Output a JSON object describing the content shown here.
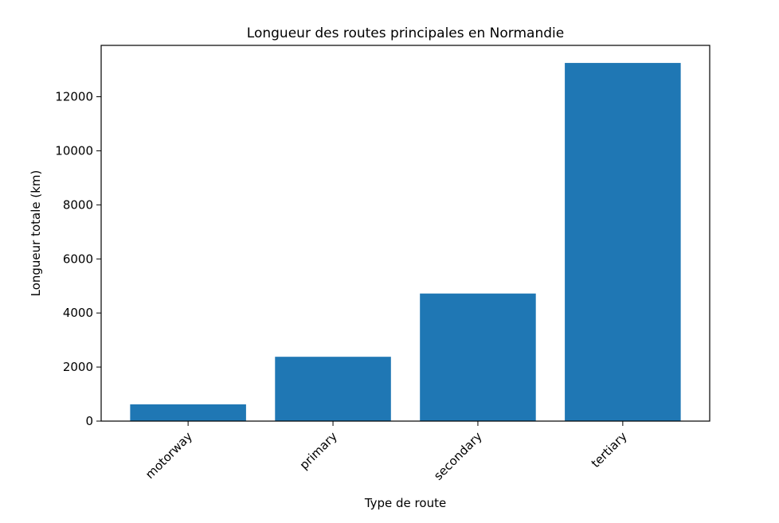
{
  "chart_data": {
    "type": "bar",
    "title": "Longueur des routes principales en Normandie",
    "xlabel": "Type de route",
    "ylabel": "Longueur totale (km)",
    "categories": [
      "motorway",
      "primary",
      "secondary",
      "tertiary"
    ],
    "values": [
      620,
      2380,
      4720,
      13250
    ],
    "ylim": [
      0,
      13900
    ],
    "yticks": [
      0,
      2000,
      4000,
      6000,
      8000,
      10000,
      12000
    ],
    "ytick_labels": [
      "0",
      "2000",
      "4000",
      "6000",
      "8000",
      "10000",
      "12000"
    ],
    "bar_color": "#1f77b4",
    "grid": false,
    "legend": "none"
  }
}
